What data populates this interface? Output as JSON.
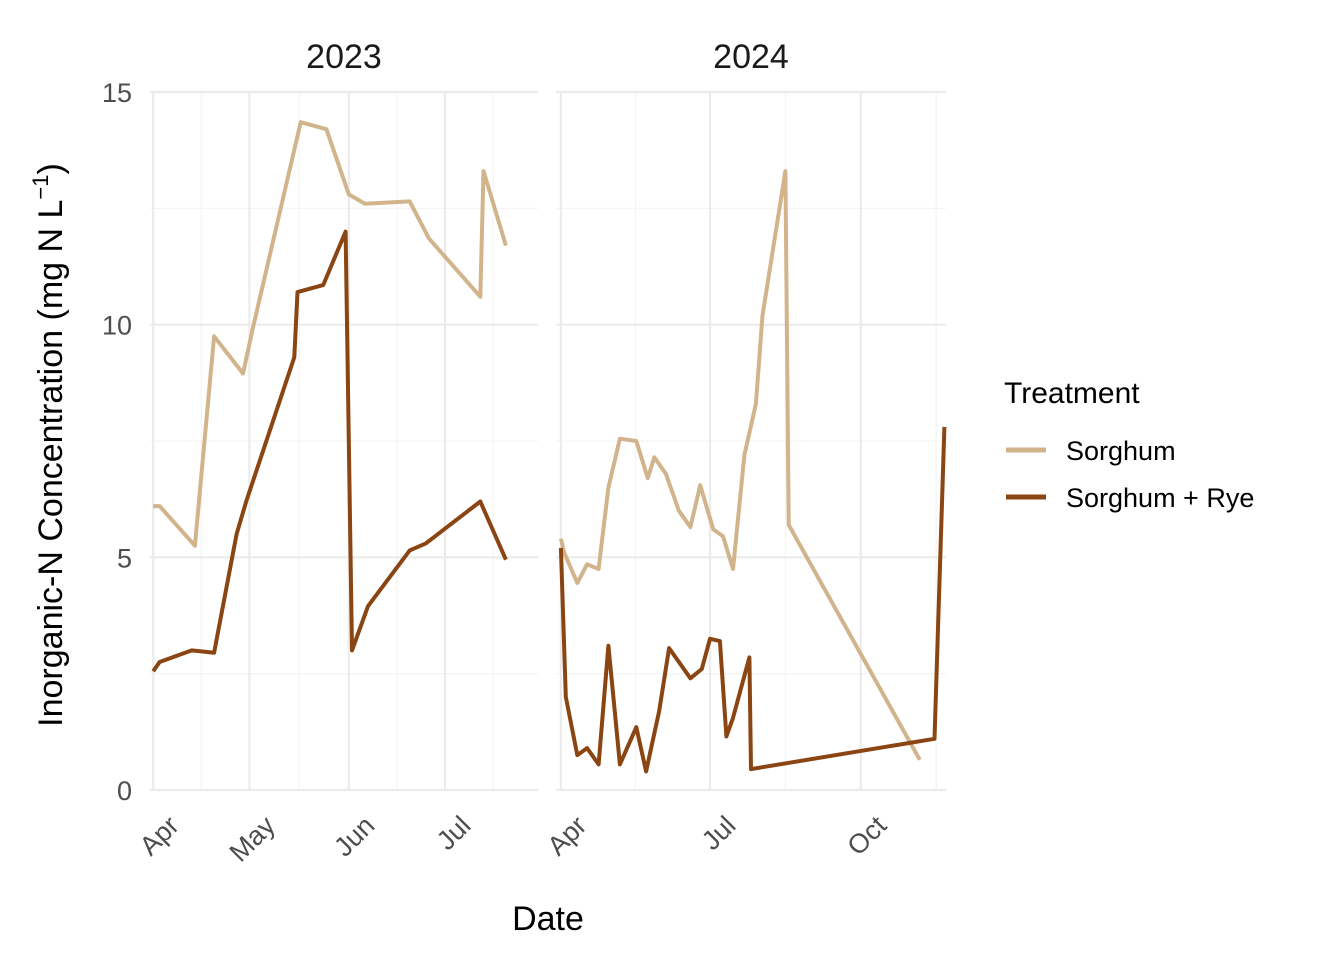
{
  "chart_data": {
    "type": "line",
    "facet_by": "year",
    "x_axis_type": "date",
    "xlabel": "Date",
    "ylabel": "Inorganic-N Concentration (mg N L",
    "ylabel_superscript": "−1",
    "ylabel_end": ")",
    "ylim": [
      0,
      15
    ],
    "yticks": [
      0,
      5,
      10,
      15
    ],
    "grid": true,
    "legend": {
      "title": "Treatment",
      "position": "right",
      "entries": [
        "Sorghum",
        "Sorghum + Rye"
      ]
    },
    "colors": {
      "Sorghum": "#D2B48C",
      "Sorghum + Rye": "#8B4513"
    },
    "panels": [
      {
        "title": "2023",
        "xlim": [
          "2023-03-31",
          "2023-07-30"
        ],
        "xticks": [
          {
            "label": "Apr",
            "date": "2023-04-01"
          },
          {
            "label": "May",
            "date": "2023-05-01"
          },
          {
            "label": "Jun",
            "date": "2023-06-01"
          },
          {
            "label": "Jul",
            "date": "2023-07-01"
          }
        ],
        "series": [
          {
            "name": "Sorghum",
            "points": [
              [
                "2023-04-01",
                6.1
              ],
              [
                "2023-04-03",
                6.1
              ],
              [
                "2023-04-14",
                5.25
              ],
              [
                "2023-04-20",
                9.75
              ],
              [
                "2023-04-29",
                8.95
              ],
              [
                "2023-05-02",
                9.9
              ],
              [
                "2023-05-17",
                14.35
              ],
              [
                "2023-05-25",
                14.2
              ],
              [
                "2023-06-01",
                12.8
              ],
              [
                "2023-06-06",
                12.6
              ],
              [
                "2023-06-20",
                12.65
              ],
              [
                "2023-06-26",
                11.85
              ],
              [
                "2023-07-12",
                10.6
              ],
              [
                "2023-07-13",
                13.3
              ],
              [
                "2023-07-20",
                11.7
              ]
            ]
          },
          {
            "name": "Sorghum + Rye",
            "points": [
              [
                "2023-04-01",
                2.55
              ],
              [
                "2023-04-03",
                2.75
              ],
              [
                "2023-04-13",
                3.0
              ],
              [
                "2023-04-20",
                2.95
              ],
              [
                "2023-04-27",
                5.5
              ],
              [
                "2023-04-30",
                6.2
              ],
              [
                "2023-05-15",
                9.3
              ],
              [
                "2023-05-16",
                10.7
              ],
              [
                "2023-05-24",
                10.85
              ],
              [
                "2023-05-31",
                12.0
              ],
              [
                "2023-06-02",
                3.0
              ],
              [
                "2023-06-07",
                3.95
              ],
              [
                "2023-06-20",
                5.15
              ],
              [
                "2023-06-25",
                5.3
              ],
              [
                "2023-07-12",
                6.2
              ],
              [
                "2023-07-20",
                4.95
              ]
            ]
          }
        ]
      },
      {
        "title": "2024",
        "xlim": [
          "2024-03-29",
          "2024-11-22"
        ],
        "xticks": [
          {
            "label": "Apr",
            "date": "2024-04-01"
          },
          {
            "label": "Jul",
            "date": "2024-07-01"
          },
          {
            "label": "Oct",
            "date": "2024-10-01"
          }
        ],
        "series": [
          {
            "name": "Sorghum",
            "points": [
              [
                "2024-04-01",
                5.4
              ],
              [
                "2024-04-03",
                5.1
              ],
              [
                "2024-04-11",
                4.45
              ],
              [
                "2024-04-17",
                4.85
              ],
              [
                "2024-04-24",
                4.75
              ],
              [
                "2024-04-30",
                6.5
              ],
              [
                "2024-05-07",
                7.55
              ],
              [
                "2024-05-17",
                7.5
              ],
              [
                "2024-05-24",
                6.7
              ],
              [
                "2024-05-28",
                7.15
              ],
              [
                "2024-06-04",
                6.8
              ],
              [
                "2024-06-12",
                6.0
              ],
              [
                "2024-06-19",
                5.65
              ],
              [
                "2024-06-25",
                6.55
              ],
              [
                "2024-07-03",
                5.6
              ],
              [
                "2024-07-09",
                5.45
              ],
              [
                "2024-07-15",
                4.75
              ],
              [
                "2024-07-22",
                7.2
              ],
              [
                "2024-07-29",
                8.3
              ],
              [
                "2024-08-02",
                10.2
              ],
              [
                "2024-08-16",
                13.3
              ],
              [
                "2024-08-18",
                5.7
              ],
              [
                "2024-11-06",
                0.65
              ]
            ]
          },
          {
            "name": "Sorghum + Rye",
            "points": [
              [
                "2024-04-01",
                5.2
              ],
              [
                "2024-04-04",
                2.0
              ],
              [
                "2024-04-11",
                0.75
              ],
              [
                "2024-04-17",
                0.9
              ],
              [
                "2024-04-24",
                0.55
              ],
              [
                "2024-04-30",
                3.1
              ],
              [
                "2024-05-07",
                0.55
              ],
              [
                "2024-05-17",
                1.35
              ],
              [
                "2024-05-23",
                0.4
              ],
              [
                "2024-05-31",
                1.7
              ],
              [
                "2024-06-06",
                3.05
              ],
              [
                "2024-06-19",
                2.4
              ],
              [
                "2024-06-26",
                2.6
              ],
              [
                "2024-07-01",
                3.25
              ],
              [
                "2024-07-07",
                3.2
              ],
              [
                "2024-07-11",
                1.15
              ],
              [
                "2024-07-15",
                1.55
              ],
              [
                "2024-07-25",
                2.85
              ],
              [
                "2024-07-26",
                0.45
              ],
              [
                "2024-11-15",
                1.1
              ],
              [
                "2024-11-21",
                7.8
              ]
            ]
          }
        ]
      }
    ]
  }
}
